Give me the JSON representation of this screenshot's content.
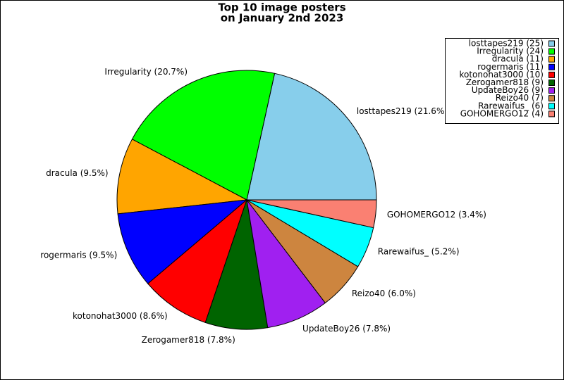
{
  "chart_data": {
    "type": "pie",
    "title": [
      "Top 10 image posters",
      "on January 2nd 2023"
    ],
    "values": [
      25,
      24,
      11,
      11,
      10,
      9,
      9,
      7,
      6,
      4
    ],
    "slice_labels": [
      "losttapes219 (21.6%)",
      "Irregularity (20.7%)",
      "dracula (9.5%)",
      "rogermaris (9.5%)",
      "kotonohat3000 (8.6%)",
      "Zerogamer818 (7.8%)",
      "UpdateBoy26 (7.8%)",
      "Reizo40 (6.0%)",
      "Rarewaifus_ (5.2%)",
      "GOHOMERGO12 (3.4%)"
    ],
    "legend_labels": [
      "losttapes219 (25)",
      "Irregularity (24)",
      "dracula (11)",
      "rogermaris (11)",
      "kotonohat3000 (10)",
      "Zerogamer818 (9)",
      "UpdateBoy26 (9)",
      "Reizo40 (7)",
      "Rarewaifus_ (6)",
      "GOHOMERGO12 (4)"
    ],
    "colors": [
      "#87ceeb",
      "#00ff00",
      "#ffa500",
      "#0000ff",
      "#ff0000",
      "#006400",
      "#a020f0",
      "#cd853f",
      "#00ffff",
      "#fa8072"
    ],
    "legend": "upper right"
  }
}
